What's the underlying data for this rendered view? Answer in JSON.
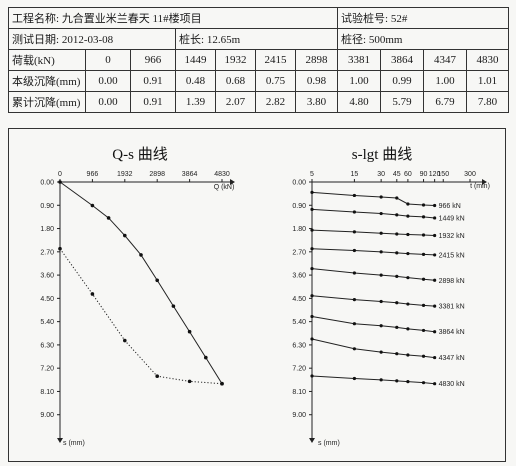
{
  "header": {
    "project_label": "工程名称:",
    "project_value": "九合置业米兰春天 11#楼项目",
    "pile_no_label": "试验桩号:",
    "pile_no_value": "52#",
    "date_label": "测试日期:",
    "date_value": "2012-03-08",
    "length_label": "桩长:",
    "length_value": "12.65m",
    "diameter_label": "桩径:",
    "diameter_value": "500mm"
  },
  "table": {
    "rows": [
      {
        "label": "荷载(kN)",
        "values": [
          "0",
          "966",
          "1449",
          "1932",
          "2415",
          "2898",
          "3381",
          "3864",
          "4347",
          "4830"
        ]
      },
      {
        "label": "本级沉降(mm)",
        "values": [
          "0.00",
          "0.91",
          "0.48",
          "0.68",
          "0.75",
          "0.98",
          "1.00",
          "0.99",
          "1.00",
          "1.01"
        ]
      },
      {
        "label": "累计沉降(mm)",
        "values": [
          "0.00",
          "0.91",
          "1.39",
          "2.07",
          "2.82",
          "3.80",
          "4.80",
          "5.79",
          "6.79",
          "7.80"
        ]
      }
    ]
  },
  "chart_data": [
    {
      "type": "line",
      "title": "Q-s  曲线",
      "xlabel": "Q (kN)",
      "ylabel": "s (mm)",
      "x_ticks": [
        "0",
        "966",
        "1932",
        "2898",
        "3864",
        "4830"
      ],
      "y_ticks": [
        "0.00",
        "0.90",
        "1.80",
        "2.70",
        "3.60",
        "4.50",
        "5.40",
        "6.30",
        "7.20",
        "8.10",
        "9.00"
      ],
      "xlim": [
        0,
        4830
      ],
      "ylim": [
        0,
        9.9
      ],
      "series": [
        {
          "style": "solid",
          "x": [
            0,
            966,
            1449,
            1932,
            2415,
            2898,
            3381,
            3864,
            4347,
            4830
          ],
          "y": [
            0.0,
            0.91,
            1.39,
            2.07,
            2.82,
            3.8,
            4.8,
            5.79,
            6.79,
            7.8
          ]
        },
        {
          "style": "dotted",
          "x": [
            0,
            966,
            1932,
            2898,
            3864,
            4830
          ],
          "y": [
            2.58,
            4.33,
            6.13,
            7.51,
            7.71,
            7.8
          ]
        }
      ]
    },
    {
      "type": "line",
      "title": "s-lgt  曲线",
      "xlabel": "t (min)",
      "ylabel": "s (mm)",
      "x_scale": "log",
      "x_ticks": [
        "5",
        "15",
        "30",
        "45",
        "60",
        "90",
        "120",
        "150",
        "300"
      ],
      "y_ticks": [
        "0.00",
        "0.90",
        "1.80",
        "2.70",
        "3.60",
        "4.50",
        "5.40",
        "6.30",
        "7.20",
        "8.10",
        "9.00"
      ],
      "xlim": [
        5,
        300
      ],
      "ylim": [
        0,
        9.9
      ],
      "series": [
        {
          "name": "966 kN",
          "x": [
            5,
            15,
            30,
            45,
            60,
            90,
            120
          ],
          "y": [
            0.4,
            0.52,
            0.58,
            0.62,
            0.85,
            0.89,
            0.91
          ]
        },
        {
          "name": "1449 kN",
          "x": [
            5,
            15,
            30,
            45,
            60,
            90,
            120
          ],
          "y": [
            1.06,
            1.16,
            1.22,
            1.27,
            1.32,
            1.35,
            1.39
          ]
        },
        {
          "name": "1932 kN",
          "x": [
            5,
            15,
            30,
            45,
            60,
            90,
            120
          ],
          "y": [
            1.86,
            1.93,
            1.98,
            2.01,
            2.03,
            2.05,
            2.07
          ]
        },
        {
          "name": "2415 kN",
          "x": [
            5,
            15,
            30,
            45,
            60,
            90,
            120
          ],
          "y": [
            2.58,
            2.65,
            2.7,
            2.74,
            2.77,
            2.8,
            2.82
          ]
        },
        {
          "name": "2898 kN",
          "x": [
            5,
            15,
            30,
            45,
            60,
            90,
            120
          ],
          "y": [
            3.35,
            3.52,
            3.6,
            3.65,
            3.7,
            3.76,
            3.8
          ]
        },
        {
          "name": "3381 kN",
          "x": [
            5,
            15,
            30,
            45,
            60,
            90,
            120
          ],
          "y": [
            4.4,
            4.55,
            4.62,
            4.67,
            4.72,
            4.77,
            4.8
          ]
        },
        {
          "name": "3864 kN",
          "x": [
            5,
            15,
            30,
            45,
            60,
            90,
            120
          ],
          "y": [
            5.2,
            5.48,
            5.56,
            5.62,
            5.68,
            5.74,
            5.79
          ]
        },
        {
          "name": "4347 kN",
          "x": [
            5,
            15,
            30,
            45,
            60,
            90,
            120
          ],
          "y": [
            6.07,
            6.45,
            6.58,
            6.64,
            6.69,
            6.74,
            6.79
          ]
        },
        {
          "name": "4830 kN",
          "x": [
            5,
            15,
            30,
            45,
            60,
            90,
            120
          ],
          "y": [
            7.5,
            7.6,
            7.65,
            7.69,
            7.72,
            7.76,
            7.8
          ]
        }
      ]
    }
  ]
}
